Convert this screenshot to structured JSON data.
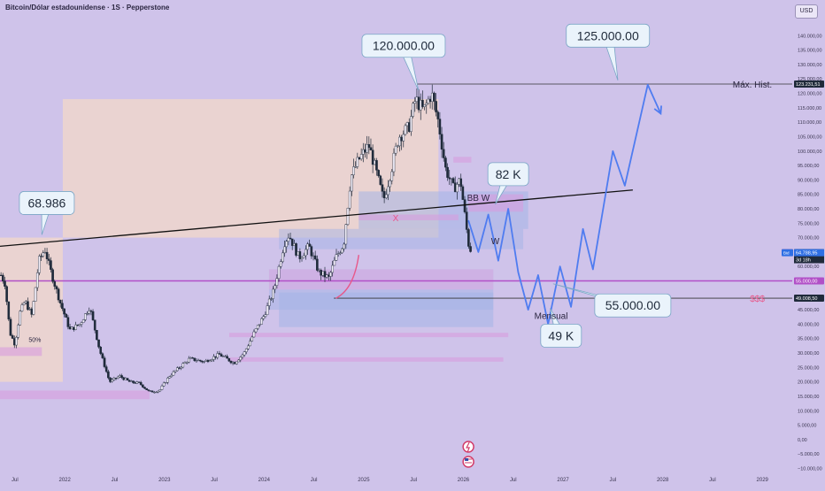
{
  "header": {
    "title": "Bitcoin/Dólar estadounidense · 1S · Pepperstone",
    "currency_button": "USD"
  },
  "chart_data": {
    "type": "candlestick",
    "symbol": "Bitcoin/Dólar estadounidense",
    "interval": "1S",
    "source": "Pepperstone",
    "y_scale": "linear",
    "ylim": [
      -12000,
      145000
    ],
    "y_ticks": [
      {
        "v": 140000,
        "label": "140.000,00"
      },
      {
        "v": 135000,
        "label": "135.000,00"
      },
      {
        "v": 130000,
        "label": "130.000,00"
      },
      {
        "v": 125000,
        "label": "125.000,00"
      },
      {
        "v": 120000,
        "label": "120.000,00"
      },
      {
        "v": 115000,
        "label": "115.000,00"
      },
      {
        "v": 110000,
        "label": "110.000,00"
      },
      {
        "v": 105000,
        "label": "105.000,00"
      },
      {
        "v": 100000,
        "label": "100.000,00"
      },
      {
        "v": 95000,
        "label": "95.000,00"
      },
      {
        "v": 90000,
        "label": "90.000,00"
      },
      {
        "v": 85000,
        "label": "85.000,00"
      },
      {
        "v": 80000,
        "label": "80.000,00"
      },
      {
        "v": 75000,
        "label": "75.000,00"
      },
      {
        "v": 70000,
        "label": "70.000,00"
      },
      {
        "v": 60000,
        "label": "60.000,00"
      },
      {
        "v": 45000,
        "label": "45.000,00"
      },
      {
        "v": 40000,
        "label": "40.000,00"
      },
      {
        "v": 35000,
        "label": "35.000,00"
      },
      {
        "v": 30000,
        "label": "30.000,00"
      },
      {
        "v": 25000,
        "label": "25.000,00"
      },
      {
        "v": 20000,
        "label": "20.000,00"
      },
      {
        "v": 15000,
        "label": "15.000,00"
      },
      {
        "v": 10000,
        "label": "10.000,00"
      },
      {
        "v": 5000,
        "label": "5.000,00"
      },
      {
        "v": 0,
        "label": "0,00"
      },
      {
        "v": -5000,
        "label": "−5.000,00"
      },
      {
        "v": -10000,
        "label": "−10.000,00"
      }
    ],
    "price_badges": [
      {
        "v": 123231.51,
        "label": "123.231,51",
        "color": "#1f2a3a"
      },
      {
        "v": 64803.95,
        "label": "64.803,95",
        "color": "#e8588a",
        "prefix": "Apk"
      },
      {
        "v": 64797.7,
        "label": "64.797,70",
        "color": "#1f2a3a",
        "sub": "3d 18h"
      },
      {
        "v": 64788.95,
        "label": "64.788,95",
        "color": "#2f6fe4",
        "prefix": "Bid"
      },
      {
        "v": 55000,
        "label": "55.000,00",
        "color": "#b14fc7"
      },
      {
        "v": 49008.5,
        "label": "49.008,50",
        "color": "#1f2a3a"
      }
    ],
    "x_ticks": [
      {
        "t": 2021.5,
        "label": "Jul"
      },
      {
        "t": 2022.0,
        "label": "2022"
      },
      {
        "t": 2022.5,
        "label": "Jul"
      },
      {
        "t": 2023.0,
        "label": "2023"
      },
      {
        "t": 2023.5,
        "label": "Jul"
      },
      {
        "t": 2024.0,
        "label": "2024"
      },
      {
        "t": 2024.5,
        "label": "Jul"
      },
      {
        "t": 2025.0,
        "label": "2025"
      },
      {
        "t": 2025.5,
        "label": "Jul"
      },
      {
        "t": 2026.0,
        "label": "2026"
      },
      {
        "t": 2026.5,
        "label": "Jul"
      },
      {
        "t": 2027.0,
        "label": "2027"
      },
      {
        "t": 2027.5,
        "label": "Jul"
      },
      {
        "t": 2028.0,
        "label": "2028"
      },
      {
        "t": 2028.5,
        "label": "Jul"
      },
      {
        "t": 2029.0,
        "label": "2029"
      }
    ],
    "xlim": [
      2021.35,
      2029.3
    ],
    "price_path": [
      [
        2021.36,
        57000
      ],
      [
        2021.4,
        54000
      ],
      [
        2021.45,
        37000
      ],
      [
        2021.5,
        33000
      ],
      [
        2021.55,
        44000
      ],
      [
        2021.6,
        48000
      ],
      [
        2021.67,
        43000
      ],
      [
        2021.74,
        62000
      ],
      [
        2021.8,
        66000
      ],
      [
        2021.87,
        57000
      ],
      [
        2021.95,
        48000
      ],
      [
        2022.05,
        38000
      ],
      [
        2022.15,
        40000
      ],
      [
        2022.25,
        46000
      ],
      [
        2022.35,
        31000
      ],
      [
        2022.45,
        20000
      ],
      [
        2022.55,
        22000
      ],
      [
        2022.65,
        20000
      ],
      [
        2022.75,
        19500
      ],
      [
        2022.85,
        16500
      ],
      [
        2022.95,
        17000
      ],
      [
        2023.05,
        22000
      ],
      [
        2023.15,
        25000
      ],
      [
        2023.25,
        28000
      ],
      [
        2023.4,
        27000
      ],
      [
        2023.55,
        29500
      ],
      [
        2023.7,
        26500
      ],
      [
        2023.8,
        30000
      ],
      [
        2023.9,
        37000
      ],
      [
        2024.0,
        43000
      ],
      [
        2024.1,
        52000
      ],
      [
        2024.2,
        68000
      ],
      [
        2024.25,
        71000
      ],
      [
        2024.35,
        63000
      ],
      [
        2024.45,
        67000
      ],
      [
        2024.55,
        58000
      ],
      [
        2024.65,
        56000
      ],
      [
        2024.72,
        63000
      ],
      [
        2024.8,
        68000
      ],
      [
        2024.87,
        91000
      ],
      [
        2024.95,
        97000
      ],
      [
        2025.05,
        102000
      ],
      [
        2025.1,
        96000
      ],
      [
        2025.2,
        83000
      ],
      [
        2025.28,
        94000
      ],
      [
        2025.35,
        105000
      ],
      [
        2025.45,
        108000
      ],
      [
        2025.52,
        118000
      ],
      [
        2025.6,
        114000
      ],
      [
        2025.68,
        120000
      ],
      [
        2025.75,
        110000
      ],
      [
        2025.82,
        94000
      ],
      [
        2025.9,
        87000
      ],
      [
        2025.97,
        90000
      ],
      [
        2026.05,
        68000
      ],
      [
        2026.08,
        65000
      ]
    ],
    "ohlc_sample": [],
    "trendline": {
      "from": [
        2021.35,
        67000
      ],
      "to": [
        2027.7,
        86500
      ]
    },
    "horizontal_lines": [
      {
        "v": 123231.51,
        "label": "Máx. Hist.",
        "t_start": 2025.52
      },
      {
        "v": 55000,
        "label": "",
        "color": "#b14fc7"
      },
      {
        "v": 49008.5,
        "label": "$$$",
        "t_start": 2024.7
      }
    ],
    "zones": [
      {
        "t0": 2021.35,
        "t1": 2021.98,
        "v0": 20000,
        "v1": 70000,
        "color": "#f3d8c8",
        "opacity": 0.75
      },
      {
        "t0": 2021.98,
        "t1": 2025.75,
        "v0": 70000,
        "v1": 118000,
        "color": "#f3d8c8",
        "opacity": 0.75
      },
      {
        "t0": 2024.95,
        "t1": 2026.65,
        "v0": 73000,
        "v1": 86000,
        "color": "#a4b4e6",
        "opacity": 0.55
      },
      {
        "t0": 2024.15,
        "t1": 2026.6,
        "v0": 66000,
        "v1": 73000,
        "color": "#a4b4e6",
        "opacity": 0.5
      },
      {
        "t0": 2024.05,
        "t1": 2026.3,
        "v0": 45000,
        "v1": 59000,
        "color": "#a4b4e6",
        "opacity": 0.5
      },
      {
        "t0": 2024.15,
        "t1": 2026.3,
        "v0": 39000,
        "v1": 51000,
        "color": "#a4b4e6",
        "opacity": 0.55
      },
      {
        "t0": 2024.05,
        "t1": 2026.3,
        "v0": 52000,
        "v1": 59000,
        "color": "#e9a7e0",
        "opacity": 0.45
      },
      {
        "t0": 2026.05,
        "t1": 2026.6,
        "v0": 79000,
        "v1": 85000,
        "color": "#d79cde",
        "opacity": 0.6
      },
      {
        "t0": 2024.95,
        "t1": 2025.95,
        "v0": 76000,
        "v1": 78000,
        "color": "#d79cde",
        "opacity": 0.6
      },
      {
        "t0": 2025.9,
        "t1": 2026.08,
        "v0": 96000,
        "v1": 98000,
        "color": "#d79cde",
        "opacity": 0.6
      },
      {
        "t0": 2021.35,
        "t1": 2021.77,
        "v0": 29000,
        "v1": 32000,
        "color": "#d79cde",
        "opacity": 0.6
      },
      {
        "t0": 2021.35,
        "t1": 2022.85,
        "v0": 14000,
        "v1": 17000,
        "color": "#d79cde",
        "opacity": 0.6
      },
      {
        "t0": 2023.65,
        "t1": 2026.45,
        "v0": 35500,
        "v1": 37000,
        "color": "#d79cde",
        "opacity": 0.6
      },
      {
        "t0": 2023.65,
        "t1": 2026.4,
        "v0": 27000,
        "v1": 28500,
        "color": "#d79cde",
        "opacity": 0.6
      }
    ],
    "projection_path": [
      [
        2026.05,
        76000
      ],
      [
        2026.15,
        65000
      ],
      [
        2026.25,
        78000
      ],
      [
        2026.35,
        62000
      ],
      [
        2026.45,
        80000
      ],
      [
        2026.55,
        58000
      ],
      [
        2026.65,
        45000
      ],
      [
        2026.75,
        57000
      ],
      [
        2026.85,
        40000
      ],
      [
        2026.97,
        60000
      ],
      [
        2027.08,
        46000
      ],
      [
        2027.2,
        73000
      ],
      [
        2027.3,
        59000
      ],
      [
        2027.5,
        100000
      ],
      [
        2027.62,
        88000
      ],
      [
        2027.85,
        123000
      ],
      [
        2027.98,
        113000
      ]
    ],
    "curve": {
      "from": [
        2024.72,
        49000
      ],
      "ctrl": [
        2024.9,
        52000
      ],
      "to": [
        2024.95,
        64000
      ],
      "color": "#e8588a"
    },
    "annotations": [
      {
        "text": "68.986",
        "t": 2021.77,
        "v": 71000,
        "box_t": 2021.82,
        "box_v": 82000,
        "type": "callout"
      },
      {
        "text": "120.000.00",
        "t": 2025.55,
        "v": 121000,
        "box_t": 2025.4,
        "box_v": 136500,
        "type": "callout"
      },
      {
        "text": "125.000.00",
        "t": 2027.55,
        "v": 124500,
        "box_t": 2027.45,
        "box_v": 140000,
        "type": "callout"
      },
      {
        "text": "82 K",
        "t": 2026.32,
        "v": 81500,
        "box_t": 2026.45,
        "box_v": 92000,
        "type": "callout"
      },
      {
        "text": "55.000.00",
        "t": 2026.9,
        "v": 54000,
        "box_t": 2027.7,
        "box_v": 46500,
        "type": "callout"
      },
      {
        "text": "49 K",
        "t": 2026.87,
        "v": 45500,
        "box_t": 2026.98,
        "box_v": 36000,
        "type": "callout"
      },
      {
        "text": "BB W",
        "t": 2026.15,
        "v": 84000,
        "type": "label"
      },
      {
        "text": "W",
        "t": 2026.32,
        "v": 69000,
        "type": "label"
      },
      {
        "text": "X",
        "t": 2025.32,
        "v": 77000,
        "type": "label",
        "color": "#e8588a"
      },
      {
        "text": "Mensual",
        "t": 2026.88,
        "v": 43000,
        "type": "label"
      },
      {
        "text": "50%",
        "t": 2021.7,
        "v": 35000,
        "type": "label",
        "small": true
      },
      {
        "text": "Máx. Hist.",
        "t": 2028.9,
        "v": 123231.51,
        "type": "label"
      },
      {
        "text": "$$$",
        "t": 2028.95,
        "v": 49008.5,
        "type": "label",
        "color": "#e8588a"
      }
    ],
    "grid": false,
    "legend": "none"
  },
  "colors": {
    "background": "#cfc3ea",
    "candle_up": "#1f2a3a",
    "candle_down": "#1f2a3a",
    "projection": "#4f7cf0",
    "trendline": "#111111",
    "accent_pink": "#e8588a",
    "accent_magenta": "#b14fc7"
  },
  "icons": [
    "flash-icon",
    "us-flag-icon"
  ]
}
